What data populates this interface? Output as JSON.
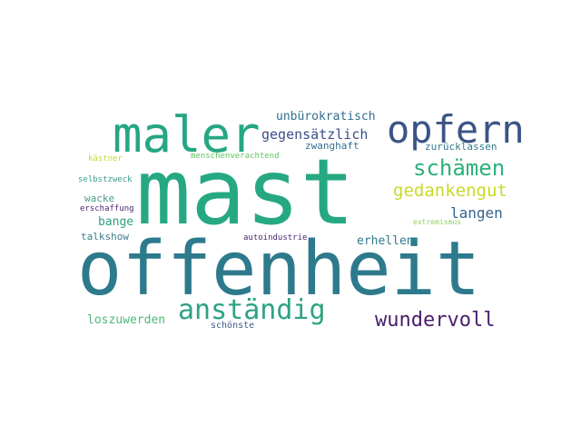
{
  "words": [
    {
      "text": "offenheit",
      "color": "#2d7a8c"
    },
    {
      "text": "mast",
      "color": "#26a883"
    },
    {
      "text": "maler",
      "color": "#25a684"
    },
    {
      "text": "opfern",
      "color": "#3b5486"
    },
    {
      "text": "anständig",
      "color": "#2ea383"
    },
    {
      "text": "schämen",
      "color": "#2db17c"
    },
    {
      "text": "wundervoll",
      "color": "#491e6c"
    },
    {
      "text": "gedankengut",
      "color": "#c8da26"
    },
    {
      "text": "gegensätzlich",
      "color": "#3b4f89"
    },
    {
      "text": "langen",
      "color": "#37648c"
    },
    {
      "text": "unbürokratisch",
      "color": "#2f6e8e"
    },
    {
      "text": "bange",
      "color": "#30a082"
    },
    {
      "text": "erhellen",
      "color": "#2e7a8e"
    },
    {
      "text": "loszuwerden",
      "color": "#4fb874"
    },
    {
      "text": "zurücklassen",
      "color": "#327b8e"
    },
    {
      "text": "zwanghaft",
      "color": "#316f8e"
    },
    {
      "text": "wacke",
      "color": "#4a9a8c"
    },
    {
      "text": "talkshow",
      "color": "#3d7c8c"
    },
    {
      "text": "autoindustrie",
      "color": "#47286f"
    },
    {
      "text": "schönste",
      "color": "#3e5a8a"
    },
    {
      "text": "menschenverachtend",
      "color": "#5fc160"
    },
    {
      "text": "selbstzweck",
      "color": "#3c9e8b"
    },
    {
      "text": "erschaffung",
      "color": "#4b2672"
    },
    {
      "text": "kästner",
      "color": "#b9dc38"
    },
    {
      "text": "extremismus",
      "color": "#8cd258"
    }
  ]
}
